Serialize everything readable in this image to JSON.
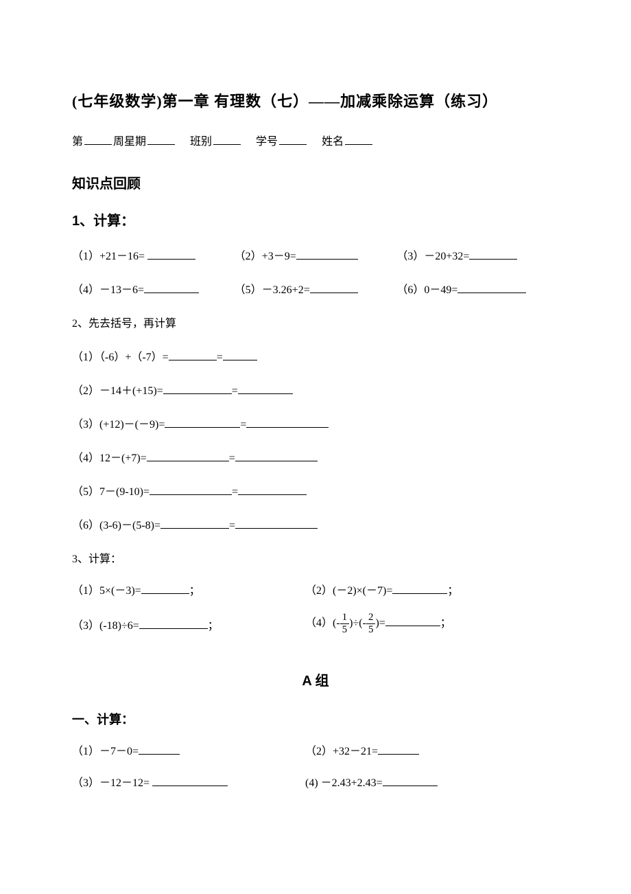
{
  "title": "(七年级数学)第一章 有理数（七）——加减乘除运算（练习）",
  "info": {
    "prefix1": "第",
    "label1": "周星期",
    "label2": "班别",
    "label3": "学号",
    "label4": "姓名"
  },
  "review_header": "知识点回顾",
  "section1": {
    "header": "1、计算：",
    "items": [
      "（1）+21－16=",
      "（2）+3－9=",
      "（3）－20+32=",
      "（4）－13－6=",
      "（5）－3.26+2=",
      "（6）0－49="
    ]
  },
  "section2": {
    "header": "2、先去括号，再计算",
    "items": [
      "（1）（-6）+（-7）=",
      "（2）－14＋(+15)=",
      "（3）(+12)－(－9)=",
      "（4）12－(+7)=",
      "（5）7－(9-10)=",
      "（6）(3-6)－(5-8)="
    ],
    "eq": "="
  },
  "section3": {
    "header": "3、计算：",
    "items": {
      "i1": "（1）5×(－3)=",
      "i2": "（2）(－2)×(－7)=",
      "i3_prefix": "（3）(-18)÷6=",
      "i4_prefix": "（4）(-",
      "i4_mid": ")÷(-",
      "i4_suffix": ")=",
      "frac1_num": "1",
      "frac1_den": "5",
      "frac2_num": "2",
      "frac2_den": "5",
      "semicolon": "；"
    }
  },
  "group_a": "A 组",
  "section_a1": {
    "header": "一、计算：",
    "items": [
      "（1）－7－0=",
      "（2）+32－21=",
      "（3）－12－12=",
      "(4) －2.43+2.43="
    ]
  }
}
